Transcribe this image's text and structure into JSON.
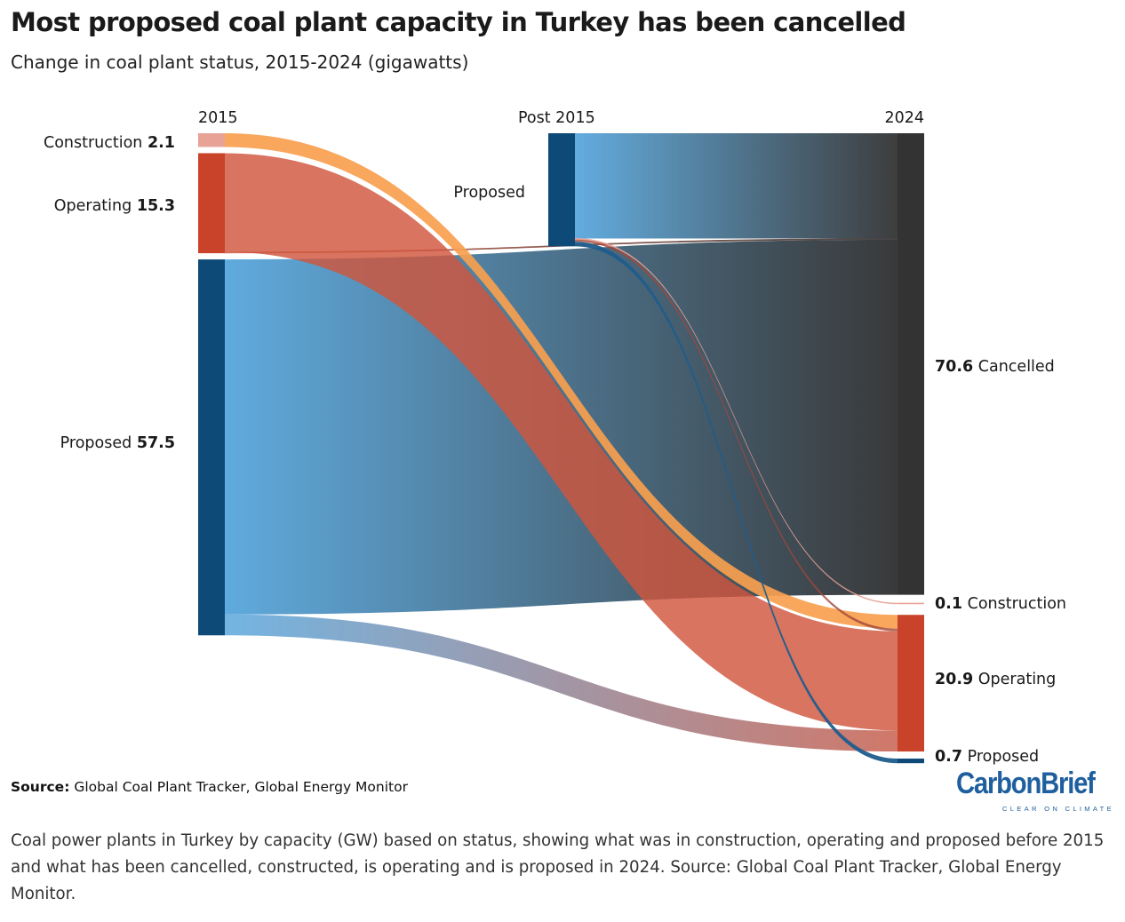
{
  "header": {
    "title": "Most proposed coal plant capacity in Turkey has been cancelled",
    "subtitle": "Change in coal plant status, 2015-2024 (gigawatts)"
  },
  "chart_data": {
    "type": "sankey",
    "units": "gigawatts",
    "columns": [
      "2015",
      "Post 2015",
      "2024"
    ],
    "nodes": [
      {
        "id": "c2015",
        "column": "2015",
        "label": "Construction",
        "value": 2.1
      },
      {
        "id": "o2015",
        "column": "2015",
        "label": "Operating",
        "value": 15.3
      },
      {
        "id": "p2015",
        "column": "2015",
        "label": "Proposed",
        "value": 57.5
      },
      {
        "id": "ppost",
        "column": "Post 2015",
        "label": "Proposed",
        "value": 17.3
      },
      {
        "id": "cancel",
        "column": "2024",
        "label": "Cancelled",
        "value": 70.6
      },
      {
        "id": "c2024",
        "column": "2024",
        "label": "Construction",
        "value": 0.1
      },
      {
        "id": "o2024",
        "column": "2024",
        "label": "Operating",
        "value": 20.9
      },
      {
        "id": "p2024",
        "column": "2024",
        "label": "Proposed",
        "value": 0.7
      }
    ],
    "links": [
      {
        "source": "c2015",
        "target": "o2024",
        "value": 2.1
      },
      {
        "source": "o2015",
        "target": "cancel",
        "value": 0.2
      },
      {
        "source": "o2015",
        "target": "o2024",
        "value": 15.1
      },
      {
        "source": "p2015",
        "target": "cancel",
        "value": 54.3
      },
      {
        "source": "p2015",
        "target": "o2024",
        "value": 3.2
      },
      {
        "source": "ppost",
        "target": "cancel",
        "value": 16.1
      },
      {
        "source": "ppost",
        "target": "c2024",
        "value": 0.1
      },
      {
        "source": "ppost",
        "target": "o2024",
        "value": 0.4
      },
      {
        "source": "ppost",
        "target": "p2024",
        "value": 0.7
      }
    ],
    "colors": {
      "construction": "#e8a296",
      "construction_flow": "#f7a95a",
      "operating": "#c8432a",
      "operating_flow": "#d4624d",
      "proposed": "#0e4a78",
      "proposed_flow": "#5ba8dc",
      "cancelled": "#333333"
    }
  },
  "footer": {
    "source_label": "Source:",
    "source_text": "Global Coal Plant Tracker, Global Energy Monitor",
    "logo_text": "CarbonBrief",
    "logo_tagline": "CLEAR ON CLIMATE",
    "caption": "Coal power plants in Turkey by capacity (GW) based on status, showing what was in construction, operating and proposed before 2015 and what has been cancelled, constructed, is operating and is proposed in 2024. Source: Global Coal Plant Tracker, Global Energy Monitor."
  }
}
